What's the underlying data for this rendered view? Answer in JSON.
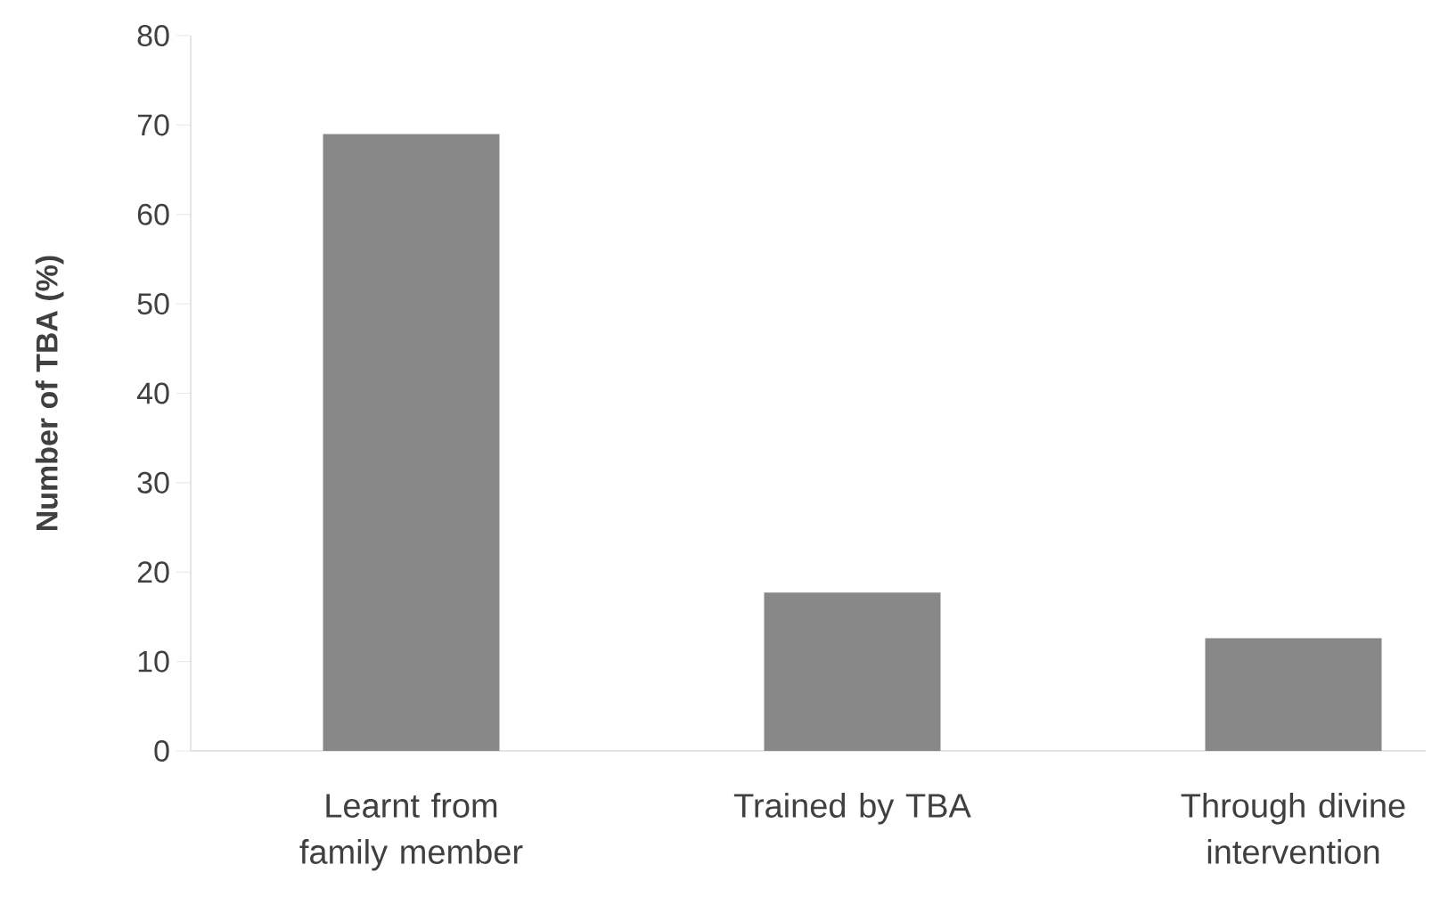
{
  "chart_data": {
    "type": "bar",
    "ylabel": "Number of TBA (%)",
    "categories": [
      "Learnt from family member",
      "Trained by TBA",
      "Through divine intervention"
    ],
    "values": [
      69,
      17.7,
      12.6
    ],
    "color": "#888888",
    "ylim": [
      0,
      80
    ],
    "yticks": [
      0,
      10,
      20,
      30,
      40,
      50,
      60,
      70,
      80
    ],
    "grid": false
  }
}
